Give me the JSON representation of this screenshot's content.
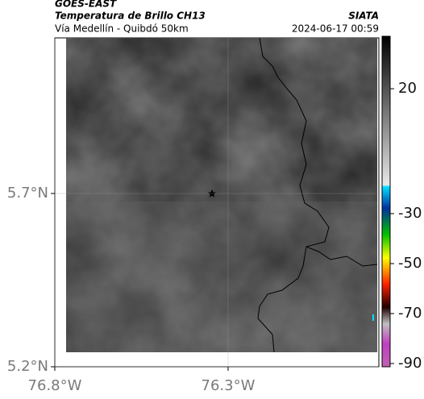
{
  "header": {
    "title": "GOES-EAST",
    "subtitle": "Temperatura de Brillo CH13",
    "region": "Vía Medellín - Quibdó 50km",
    "source": "SIATA",
    "datetime": "2024-06-17 00:59"
  },
  "map": {
    "xlim": [
      -76.8,
      -75.865
    ],
    "ylim": [
      5.2,
      6.149
    ],
    "xticks": [
      {
        "value": -76.8,
        "label": "76.8°W"
      },
      {
        "value": -76.3,
        "label": "76.3°W"
      }
    ],
    "yticks": [
      {
        "value": 5.2,
        "label": "5.2°N"
      },
      {
        "value": 5.7,
        "label": "5.7°N"
      }
    ],
    "grid": true
  },
  "colorbar": {
    "clim": [
      41,
      -91.3
    ],
    "ticks": [
      20,
      -30,
      -50,
      -70,
      -90
    ]
  }
}
